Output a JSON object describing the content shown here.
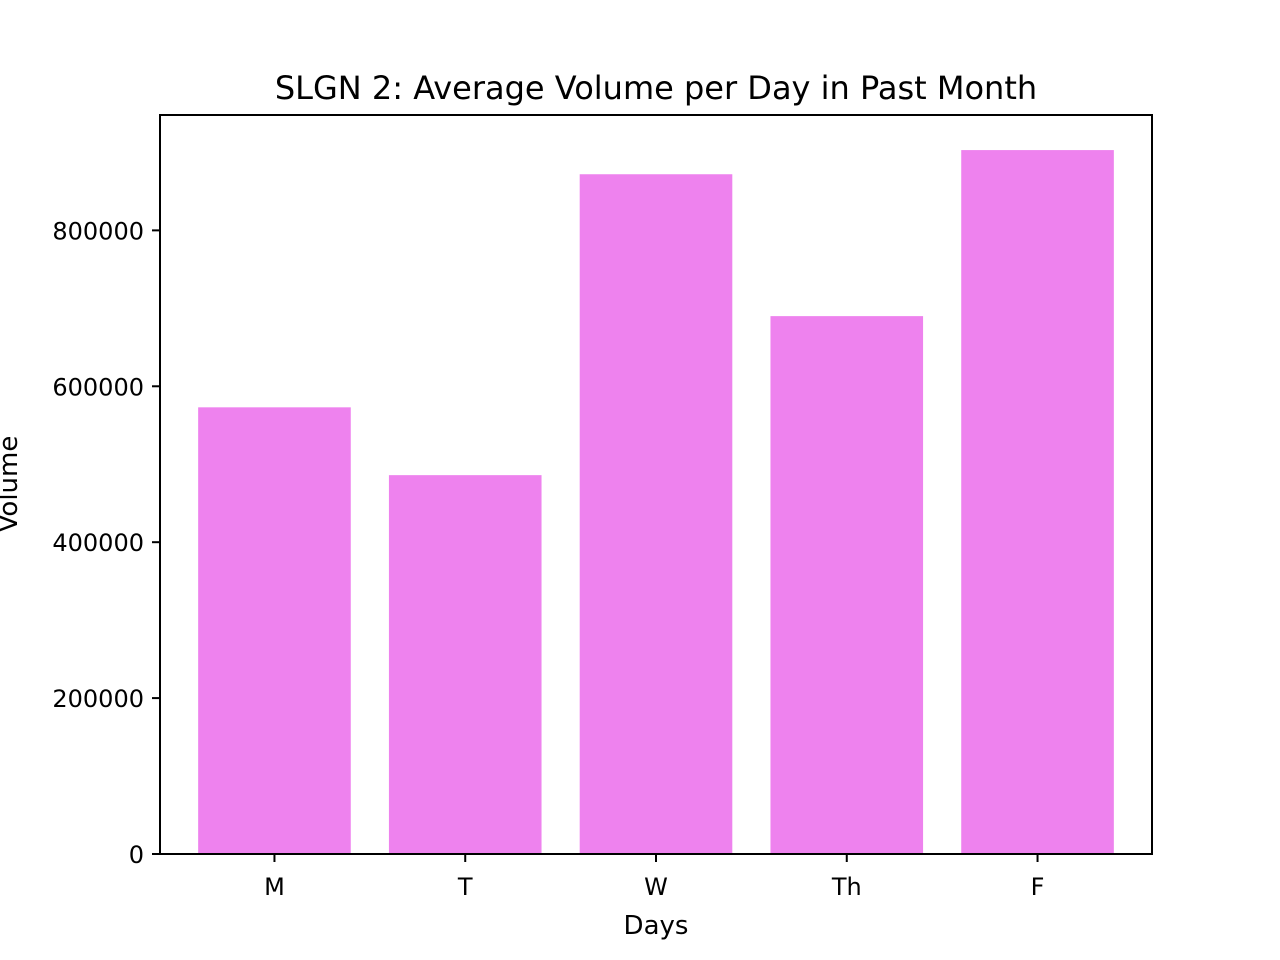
{
  "chart_data": {
    "type": "bar",
    "title": "SLGN 2: Average Volume per Day in Past Month",
    "xlabel": "Days",
    "ylabel": "Volume",
    "categories": [
      "M",
      "T",
      "W",
      "Th",
      "F"
    ],
    "values": [
      573000,
      486000,
      872000,
      690000,
      903000
    ],
    "ylim": [
      0,
      948000
    ],
    "yticks": [
      0,
      200000,
      400000,
      600000,
      800000
    ],
    "ytick_labels": [
      "0",
      "200000",
      "400000",
      "600000",
      "800000"
    ],
    "bar_color": "#ee82ee",
    "grid": false,
    "legend": "none"
  }
}
